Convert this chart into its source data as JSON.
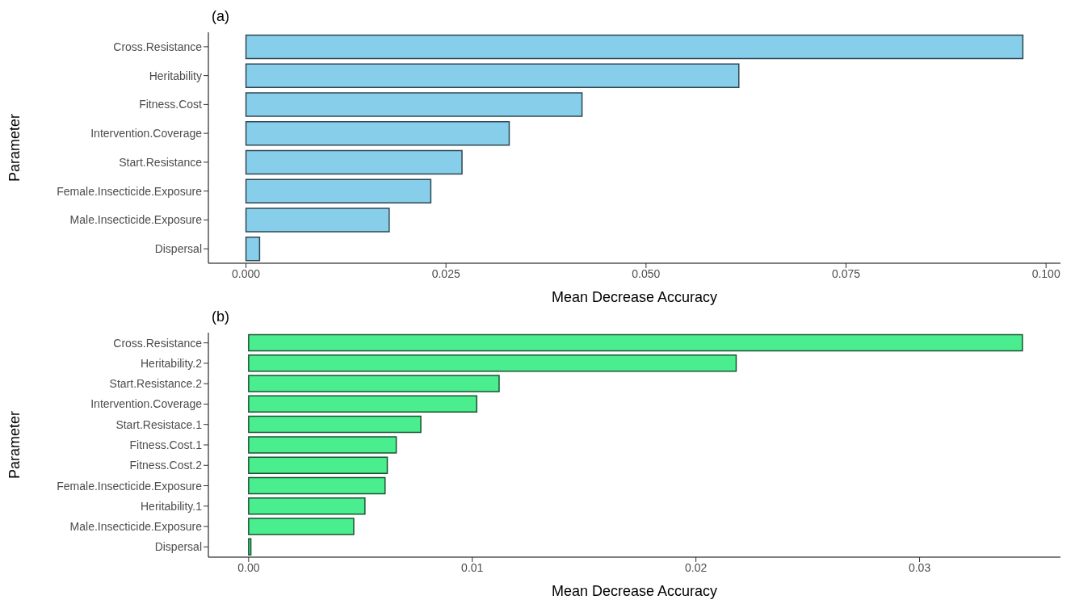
{
  "chart_data": [
    {
      "type": "bar",
      "orientation": "horizontal",
      "title": "(a)",
      "xlabel": "Mean Decrease Accuracy",
      "ylabel": "Parameter",
      "categories": [
        "Cross.Resistance",
        "Heritability",
        "Fitness.Cost",
        "Intervention.Coverage",
        "Start.Resistance",
        "Female.Insecticide.Exposure",
        "Male.Insecticide.Exposure",
        "Dispersal"
      ],
      "series": [
        {
          "color": "#87ceeb",
          "values": [
            0.0971,
            0.0616,
            0.042,
            0.0329,
            0.027,
            0.0231,
            0.0179,
            0.0017
          ]
        }
      ],
      "xlim": [
        -0.0047,
        0.1018
      ],
      "xticks": [
        {
          "value": 0,
          "label": "0.000"
        },
        {
          "value": 0.025,
          "label": "0.025"
        },
        {
          "value": 0.05,
          "label": "0.050"
        },
        {
          "value": 0.075,
          "label": "0.075"
        },
        {
          "value": 0.1,
          "label": "0.100"
        }
      ],
      "grid": false
    },
    {
      "type": "bar",
      "orientation": "horizontal",
      "title": "(b)",
      "xlabel": "Mean Decrease Accuracy",
      "ylabel": "Parameter",
      "categories": [
        "Cross.Resistance",
        "Heritability.2",
        "Start.Resistance.2",
        "Intervention.Coverage",
        "Start.Resistace.1",
        "Fitness.Cost.1",
        "Fitness.Cost.2",
        "Female.Insecticide.Exposure",
        "Heritability.1",
        "Male.Insecticide.Exposure",
        "Dispersal"
      ],
      "series": [
        {
          "color": "#4aee8f",
          "values": [
            0.0346,
            0.0218,
            0.0112,
            0.0102,
            0.0077,
            0.0066,
            0.0062,
            0.0061,
            0.0052,
            0.0047,
            0.0001
          ]
        }
      ],
      "xlim": [
        -0.0018,
        0.0363
      ],
      "xticks": [
        {
          "value": 0,
          "label": "0.00"
        },
        {
          "value": 0.01,
          "label": "0.01"
        },
        {
          "value": 0.02,
          "label": "0.02"
        },
        {
          "value": 0.03,
          "label": "0.03"
        }
      ],
      "grid": false
    }
  ]
}
